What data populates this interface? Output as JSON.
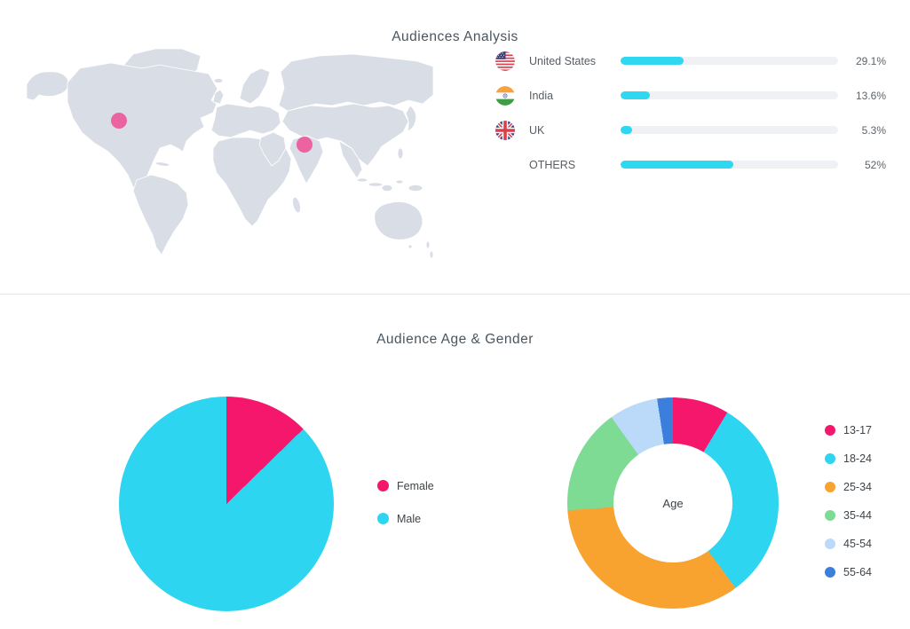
{
  "audiences": {
    "title": "Audiences Analysis",
    "countries": [
      {
        "flag": "us",
        "label": "United States",
        "pct": 29.1,
        "pct_label": "29.1%"
      },
      {
        "flag": "in",
        "label": "India",
        "pct": 13.6,
        "pct_label": "13.6%"
      },
      {
        "flag": "uk",
        "label": "UK",
        "pct": 5.3,
        "pct_label": "5.3%"
      },
      {
        "flag": "",
        "label": "OTHERS",
        "pct": 52,
        "pct_label": "52%"
      }
    ],
    "map": {
      "land_color": "#d9dde6",
      "marker_color": "#ec63a2",
      "markers": [
        {
          "name": "united-states",
          "x": 104,
          "y": 81
        },
        {
          "name": "india",
          "x": 313,
          "y": 108
        }
      ]
    },
    "bar_colors": {
      "fill": "#2fd8f1",
      "track": "#f0f1f4"
    }
  },
  "age_gender": {
    "title": "Audience Age & Gender"
  },
  "chart_data": [
    {
      "type": "bar",
      "title": "Audiences Analysis",
      "orientation": "horizontal",
      "categories": [
        "United States",
        "India",
        "UK",
        "OTHERS"
      ],
      "values": [
        29.1,
        13.6,
        5.3,
        52
      ],
      "unit": "%",
      "bar_color": "#2fd8f1",
      "xlim": [
        0,
        100
      ]
    },
    {
      "type": "pie",
      "name": "gender",
      "categories": [
        "Female",
        "Male"
      ],
      "values": [
        12.7,
        87.3
      ],
      "colors": [
        "#f4176c",
        "#2ed5f0"
      ],
      "legend_position": "right",
      "start_angle_deg": 0,
      "direction": "clockwise"
    },
    {
      "type": "donut",
      "name": "age",
      "center_label": "Age",
      "categories": [
        "13-17",
        "18-24",
        "25-34",
        "35-44",
        "45-54",
        "55-64"
      ],
      "values": [
        8.6,
        31.3,
        34.0,
        16.2,
        7.5,
        2.4
      ],
      "colors": [
        "#f4176c",
        "#2ed5f0",
        "#f8a22f",
        "#7edb93",
        "#bbd9f8",
        "#3b7edc"
      ],
      "legend_position": "right",
      "start_angle_deg": 0,
      "direction": "clockwise"
    }
  ]
}
